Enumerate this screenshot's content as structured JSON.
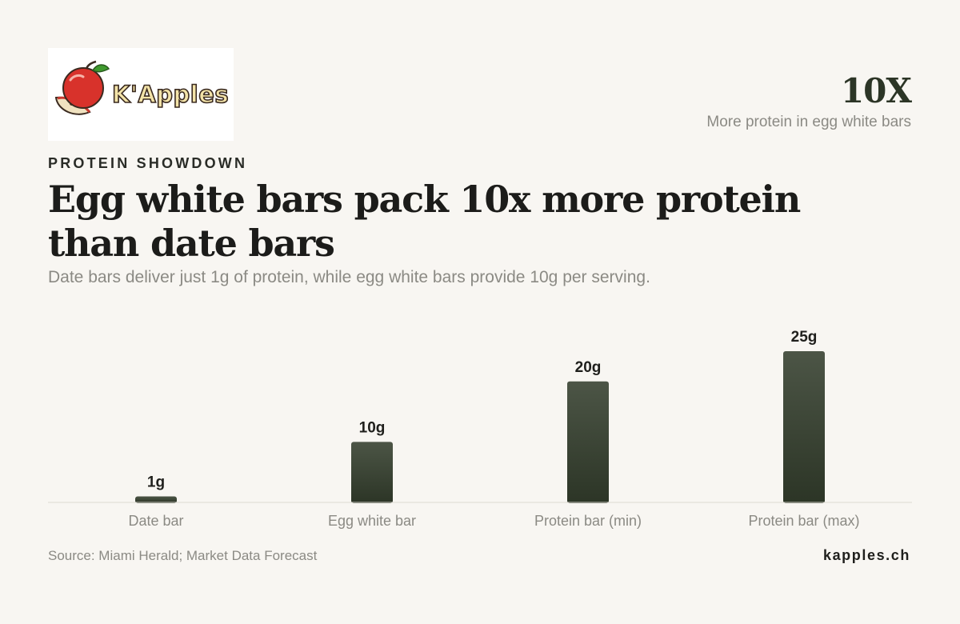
{
  "brand": {
    "logo_text": "K'Apples",
    "logo_icon": "apple-icon",
    "site": "kapples.ch"
  },
  "stat": {
    "value": "10X",
    "caption": "More protein in egg white bars"
  },
  "eyebrow": "PROTEIN SHOWDOWN",
  "headline": "Egg white bars pack 10x more protein than date bars",
  "subtitle": "Date bars deliver just 1g of protein, while egg white bars provide 10g per serving.",
  "source": "Source: Miami Herald; Market Data Forecast",
  "colors": {
    "background": "#f8f6f2",
    "bar_dark": "#2c3526",
    "bar_light": "#4c5546",
    "muted_text": "#8b8a84"
  },
  "chart_data": {
    "type": "bar",
    "categories": [
      "Date bar",
      "Egg white bar",
      "Protein bar (min)",
      "Protein bar (max)"
    ],
    "values": [
      1,
      10,
      20,
      25
    ],
    "value_labels": [
      "1g",
      "10g",
      "20g",
      "25g"
    ],
    "unit": "g",
    "title": "",
    "xlabel": "",
    "ylabel": "",
    "ylim": [
      0,
      25
    ],
    "grid": false,
    "legend": "none"
  }
}
